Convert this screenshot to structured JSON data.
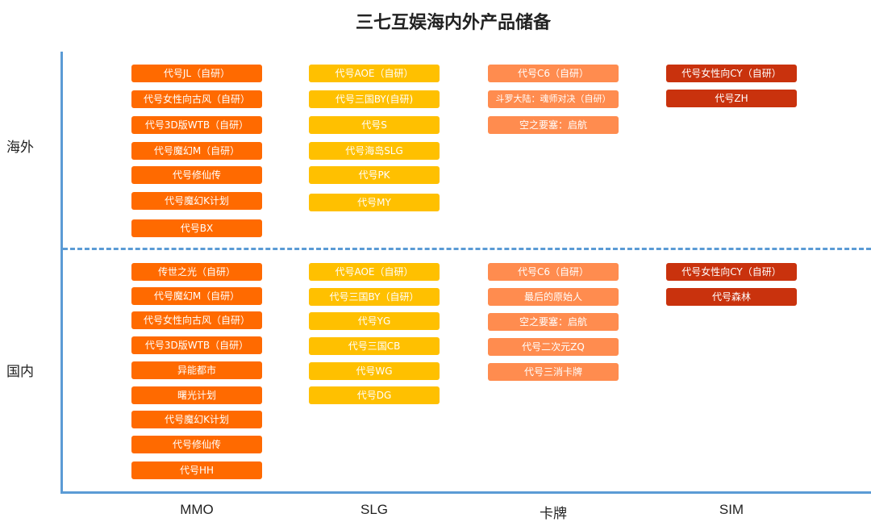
{
  "title": "三七互娱海内外产品储备",
  "rows": {
    "overseas": "海外",
    "domestic": "国内"
  },
  "columns": [
    "MMO",
    "SLG",
    "卡牌",
    "SIM"
  ],
  "colors": {
    "mmo": "#ff6a00",
    "slg": "#ffc000",
    "card": "#ff8c4f",
    "sim": "#c9320d",
    "axis": "#5b9bd5"
  },
  "overseas": {
    "mmo": [
      "代号JL（自研）",
      "代号女性向古风（自研）",
      "代号3D版WTB（自研）",
      "代号魔幻M（自研）",
      "代号修仙传",
      "代号魔幻K计划",
      "代号BX"
    ],
    "slg": [
      "代号AOE（自研）",
      "代号三国BY(自研)",
      "代号S",
      "代号海岛SLG",
      "代号PK",
      "代号MY"
    ],
    "card": [
      "代号C6（自研）",
      "斗罗大陆：魂师对决（自研）",
      "空之要塞：启航"
    ],
    "sim": [
      "代号女性向CY（自研）",
      "代号ZH"
    ]
  },
  "domestic": {
    "mmo": [
      "传世之光（自研）",
      "代号魔幻M（自研）",
      "代号女性向古风（自研）",
      "代号3D版WTB（自研）",
      "异能都市",
      "曙光计划",
      "代号魔幻K计划",
      "代号修仙传",
      "代号HH"
    ],
    "slg": [
      "代号AOE（自研）",
      "代号三国BY（自研）",
      "代号YG",
      "代号三国CB",
      "代号WG",
      "代号DG"
    ],
    "card": [
      "代号C6（自研）",
      "最后的原始人",
      "空之要塞：启航",
      "代号二次元ZQ",
      "代号三消卡牌"
    ],
    "sim": [
      "代号女性向CY（自研）",
      "代号森林"
    ]
  }
}
